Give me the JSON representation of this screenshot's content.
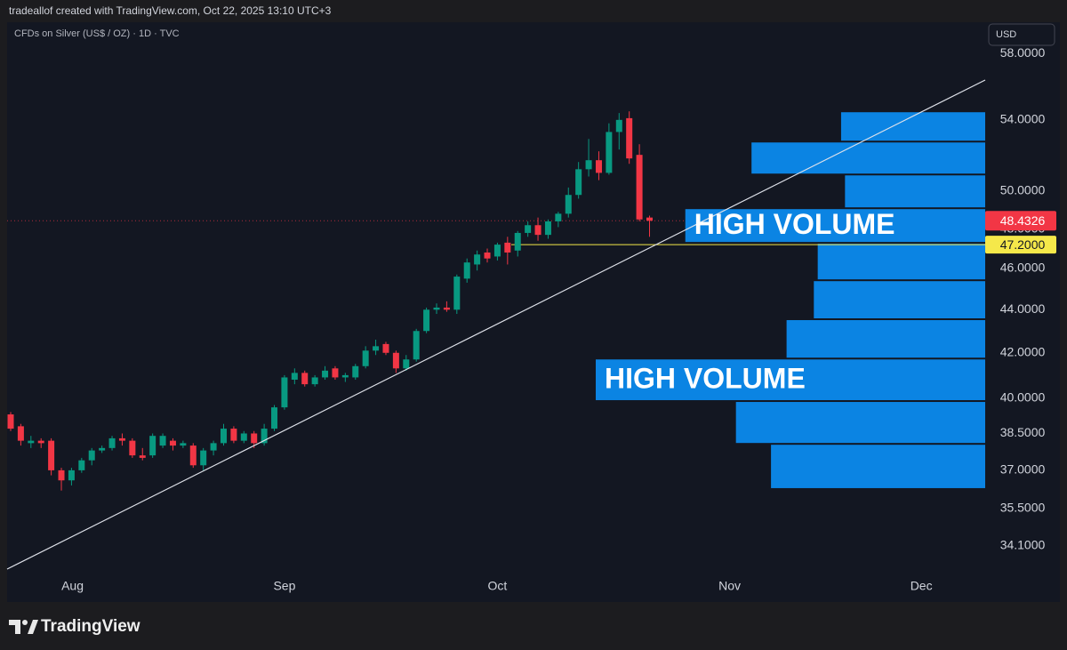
{
  "header": "tradeallof created with TradingView.com, Oct 22, 2025 13:10 UTC+3",
  "brand": "TradingView",
  "chart_data": {
    "type": "candlestick",
    "title": "CFDs on Silver (US$ / OZ) · 1D · TVC",
    "currency": "USD",
    "log_scale": true,
    "grid": false,
    "up_color": "#089981",
    "down_color": "#f23645",
    "candles": [
      {
        "o": 39.3,
        "h": 39.4,
        "l": 38.6,
        "c": 38.7
      },
      {
        "o": 38.8,
        "h": 38.9,
        "l": 38.0,
        "c": 38.2
      },
      {
        "o": 38.1,
        "h": 38.4,
        "l": 37.9,
        "c": 38.2
      },
      {
        "o": 38.2,
        "h": 38.3,
        "l": 37.9,
        "c": 38.1
      },
      {
        "o": 38.2,
        "h": 38.3,
        "l": 36.8,
        "c": 37.0
      },
      {
        "o": 37.0,
        "h": 37.1,
        "l": 36.2,
        "c": 36.6
      },
      {
        "o": 36.6,
        "h": 37.1,
        "l": 36.4,
        "c": 37.0
      },
      {
        "o": 37.0,
        "h": 37.5,
        "l": 36.9,
        "c": 37.4
      },
      {
        "o": 37.4,
        "h": 37.9,
        "l": 37.2,
        "c": 37.8
      },
      {
        "o": 37.8,
        "h": 38.0,
        "l": 37.7,
        "c": 37.9
      },
      {
        "o": 37.9,
        "h": 38.4,
        "l": 37.8,
        "c": 38.3
      },
      {
        "o": 38.3,
        "h": 38.5,
        "l": 38.0,
        "c": 38.2
      },
      {
        "o": 38.2,
        "h": 38.3,
        "l": 37.5,
        "c": 37.6
      },
      {
        "o": 37.6,
        "h": 37.9,
        "l": 37.4,
        "c": 37.5
      },
      {
        "o": 37.6,
        "h": 38.5,
        "l": 37.5,
        "c": 38.4
      },
      {
        "o": 38.0,
        "h": 38.5,
        "l": 37.9,
        "c": 38.4
      },
      {
        "o": 38.2,
        "h": 38.3,
        "l": 37.8,
        "c": 38.0
      },
      {
        "o": 38.0,
        "h": 38.2,
        "l": 37.9,
        "c": 38.1
      },
      {
        "o": 38.0,
        "h": 38.1,
        "l": 37.1,
        "c": 37.2
      },
      {
        "o": 37.2,
        "h": 37.9,
        "l": 37.0,
        "c": 37.8
      },
      {
        "o": 37.8,
        "h": 38.2,
        "l": 37.6,
        "c": 38.1
      },
      {
        "o": 38.1,
        "h": 38.9,
        "l": 38.0,
        "c": 38.7
      },
      {
        "o": 38.7,
        "h": 38.8,
        "l": 38.1,
        "c": 38.2
      },
      {
        "o": 38.2,
        "h": 38.6,
        "l": 38.1,
        "c": 38.5
      },
      {
        "o": 38.5,
        "h": 38.6,
        "l": 37.9,
        "c": 38.1
      },
      {
        "o": 38.1,
        "h": 38.9,
        "l": 38.0,
        "c": 38.7
      },
      {
        "o": 38.7,
        "h": 39.7,
        "l": 38.6,
        "c": 39.6
      },
      {
        "o": 39.6,
        "h": 41.0,
        "l": 39.5,
        "c": 40.9
      },
      {
        "o": 40.8,
        "h": 41.3,
        "l": 40.6,
        "c": 41.1
      },
      {
        "o": 41.1,
        "h": 41.2,
        "l": 40.5,
        "c": 40.6
      },
      {
        "o": 40.6,
        "h": 41.0,
        "l": 40.5,
        "c": 40.9
      },
      {
        "o": 40.9,
        "h": 41.4,
        "l": 40.8,
        "c": 41.2
      },
      {
        "o": 41.3,
        "h": 41.4,
        "l": 40.8,
        "c": 40.9
      },
      {
        "o": 40.9,
        "h": 41.1,
        "l": 40.7,
        "c": 41.0
      },
      {
        "o": 40.9,
        "h": 41.5,
        "l": 40.8,
        "c": 41.4
      },
      {
        "o": 41.4,
        "h": 42.3,
        "l": 41.3,
        "c": 42.1
      },
      {
        "o": 42.1,
        "h": 42.6,
        "l": 41.9,
        "c": 42.3
      },
      {
        "o": 42.4,
        "h": 42.5,
        "l": 41.9,
        "c": 42.0
      },
      {
        "o": 42.0,
        "h": 42.1,
        "l": 41.1,
        "c": 41.3
      },
      {
        "o": 41.3,
        "h": 41.9,
        "l": 41.2,
        "c": 41.7
      },
      {
        "o": 41.7,
        "h": 43.1,
        "l": 41.6,
        "c": 43.0
      },
      {
        "o": 43.0,
        "h": 44.1,
        "l": 42.9,
        "c": 44.0
      },
      {
        "o": 44.0,
        "h": 44.3,
        "l": 43.8,
        "c": 44.1
      },
      {
        "o": 44.1,
        "h": 44.4,
        "l": 43.9,
        "c": 44.0
      },
      {
        "o": 44.0,
        "h": 45.7,
        "l": 43.8,
        "c": 45.6
      },
      {
        "o": 45.5,
        "h": 46.5,
        "l": 45.3,
        "c": 46.3
      },
      {
        "o": 46.2,
        "h": 46.9,
        "l": 45.9,
        "c": 46.7
      },
      {
        "o": 46.8,
        "h": 47.0,
        "l": 46.3,
        "c": 46.5
      },
      {
        "o": 46.6,
        "h": 47.3,
        "l": 46.4,
        "c": 47.2
      },
      {
        "o": 47.3,
        "h": 47.6,
        "l": 46.2,
        "c": 46.8
      },
      {
        "o": 46.9,
        "h": 47.9,
        "l": 46.6,
        "c": 47.8
      },
      {
        "o": 47.8,
        "h": 48.4,
        "l": 47.6,
        "c": 48.2
      },
      {
        "o": 48.2,
        "h": 48.6,
        "l": 47.4,
        "c": 47.7
      },
      {
        "o": 47.7,
        "h": 48.5,
        "l": 47.5,
        "c": 48.4
      },
      {
        "o": 48.4,
        "h": 48.9,
        "l": 48.1,
        "c": 48.8
      },
      {
        "o": 48.8,
        "h": 50.2,
        "l": 48.6,
        "c": 49.8
      },
      {
        "o": 49.8,
        "h": 51.6,
        "l": 49.6,
        "c": 51.2
      },
      {
        "o": 51.2,
        "h": 52.9,
        "l": 50.8,
        "c": 51.7
      },
      {
        "o": 51.7,
        "h": 52.2,
        "l": 50.6,
        "c": 51.0
      },
      {
        "o": 51.0,
        "h": 53.8,
        "l": 50.9,
        "c": 53.3
      },
      {
        "o": 53.3,
        "h": 54.4,
        "l": 52.3,
        "c": 54.0
      },
      {
        "o": 54.1,
        "h": 54.5,
        "l": 51.5,
        "c": 51.8
      },
      {
        "o": 52.0,
        "h": 52.6,
        "l": 48.4,
        "c": 48.5
      },
      {
        "o": 48.6,
        "h": 48.7,
        "l": 47.6,
        "c": 48.4326
      }
    ],
    "xlim": [
      -0.35,
      96.1
    ],
    "xticks": [
      {
        "value": 6.1,
        "label": "Aug"
      },
      {
        "value": 27,
        "label": "Sep"
      },
      {
        "value": 48,
        "label": "Oct"
      },
      {
        "value": 70.9,
        "label": "Nov"
      },
      {
        "value": 89.8,
        "label": "Dec"
      }
    ],
    "ylim": [
      33.1,
      60
    ],
    "yticks": [
      {
        "value": 58,
        "label": "58.0000"
      },
      {
        "value": 54,
        "label": "54.0000"
      },
      {
        "value": 50,
        "label": "50.0000"
      },
      {
        "value": 48,
        "label": "48.0000"
      },
      {
        "value": 46,
        "label": "46.0000"
      },
      {
        "value": 44,
        "label": "44.0000"
      },
      {
        "value": 42,
        "label": "42.0000"
      },
      {
        "value": 40,
        "label": "40.0000"
      },
      {
        "value": 38.5,
        "label": "38.5000"
      },
      {
        "value": 37,
        "label": "37.0000"
      },
      {
        "value": 35.5,
        "label": "35.5000"
      },
      {
        "value": 34.1,
        "label": "34.1000"
      }
    ],
    "last_price": 48.4326,
    "last_price_color": "#f23645",
    "level": {
      "value": 47.2,
      "label": "47.2000"
    },
    "level_color": "#f5e84a",
    "volume_profile": {
      "color": "#0b84e3",
      "bins": [
        36.26,
        38.07,
        39.87,
        41.74,
        43.55,
        45.42,
        47.29,
        49.09,
        50.91,
        52.75,
        54.5
      ],
      "values": [
        55,
        64,
        100,
        51,
        44,
        43,
        77,
        36,
        60,
        37
      ],
      "xlim": [
        0,
        100
      ],
      "labels": [
        null,
        null,
        "HIGH VOLUME",
        null,
        null,
        null,
        "HIGH VOLUME",
        null,
        null,
        null
      ]
    }
  }
}
